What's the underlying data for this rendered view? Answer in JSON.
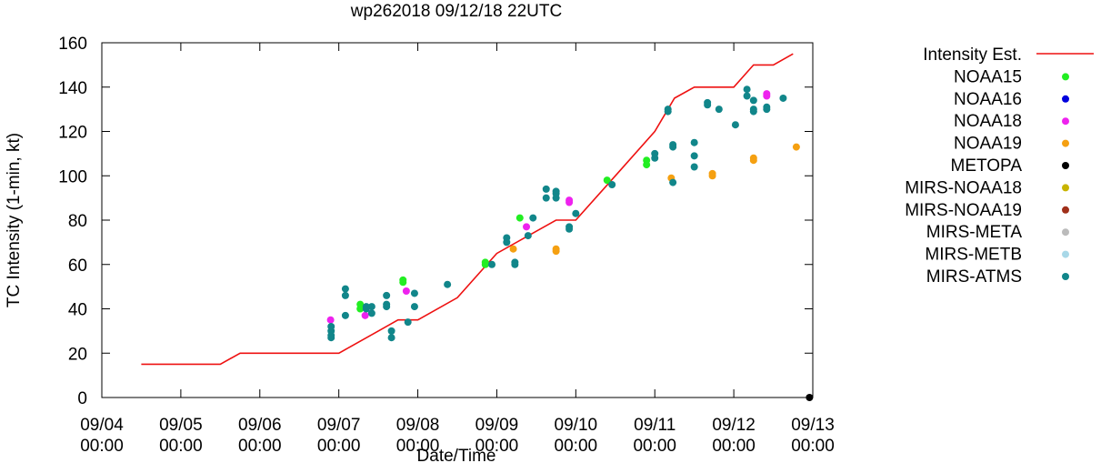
{
  "chart_data": {
    "type": "scatter",
    "title": "wp262018 09/12/18 22UTC",
    "xlabel": "Date/Time",
    "ylabel": "TC Intensity (1-min, kt)",
    "ylim": [
      0,
      160
    ],
    "yticks": [
      0,
      20,
      40,
      60,
      80,
      100,
      120,
      140,
      160
    ],
    "xlim": [
      "2018-09-04 00:00",
      "2018-09-13 00:00"
    ],
    "xticks": [
      {
        "value": "2018-09-04 00:00",
        "line1": "09/04",
        "line2": "00:00"
      },
      {
        "value": "2018-09-05 00:00",
        "line1": "09/05",
        "line2": "00:00"
      },
      {
        "value": "2018-09-06 00:00",
        "line1": "09/06",
        "line2": "00:00"
      },
      {
        "value": "2018-09-07 00:00",
        "line1": "09/07",
        "line2": "00:00"
      },
      {
        "value": "2018-09-08 00:00",
        "line1": "09/08",
        "line2": "00:00"
      },
      {
        "value": "2018-09-09 00:00",
        "line1": "09/09",
        "line2": "00:00"
      },
      {
        "value": "2018-09-10 00:00",
        "line1": "09/10",
        "line2": "00:00"
      },
      {
        "value": "2018-09-11 00:00",
        "line1": "09/11",
        "line2": "00:00"
      },
      {
        "value": "2018-09-12 00:00",
        "line1": "09/12",
        "line2": "00:00"
      },
      {
        "value": "2018-09-13 00:00",
        "line1": "09/13",
        "line2": "00:00"
      }
    ],
    "grid": false,
    "legend_position": "right",
    "legend": [
      {
        "name": "Intensity Est.",
        "marker": "line",
        "color": "#ee1111"
      },
      {
        "name": "NOAA15",
        "marker": "point",
        "color": "#22ee22"
      },
      {
        "name": "NOAA16",
        "marker": "point",
        "color": "#0000dd"
      },
      {
        "name": "NOAA18",
        "marker": "point",
        "color": "#ee22ee"
      },
      {
        "name": "NOAA19",
        "marker": "point",
        "color": "#f5a011"
      },
      {
        "name": "METOPA",
        "marker": "point",
        "color": "#000000"
      },
      {
        "name": "MIRS-NOAA18",
        "marker": "point",
        "color": "#c8b400"
      },
      {
        "name": "MIRS-NOAA19",
        "marker": "point",
        "color": "#a0301a"
      },
      {
        "name": "MIRS-META",
        "marker": "point",
        "color": "#bbbbbb"
      },
      {
        "name": "MIRS-METB",
        "marker": "point",
        "color": "#a8d8e8"
      },
      {
        "name": "MIRS-ATMS",
        "marker": "point",
        "color": "#11868a"
      }
    ],
    "series": [
      {
        "name": "Intensity Est.",
        "kind": "line",
        "color": "#ee1111",
        "points": [
          [
            "2018-09-04 12:00",
            15
          ],
          [
            "2018-09-05 12:00",
            15
          ],
          [
            "2018-09-05 18:00",
            20
          ],
          [
            "2018-09-07 00:00",
            20
          ],
          [
            "2018-09-07 12:00",
            30
          ],
          [
            "2018-09-07 18:00",
            35
          ],
          [
            "2018-09-08 00:00",
            35
          ],
          [
            "2018-09-08 12:00",
            45
          ],
          [
            "2018-09-09 00:00",
            65
          ],
          [
            "2018-09-09 12:00",
            75
          ],
          [
            "2018-09-09 18:00",
            80
          ],
          [
            "2018-09-10 00:00",
            80
          ],
          [
            "2018-09-10 12:00",
            100
          ],
          [
            "2018-09-11 00:00",
            120
          ],
          [
            "2018-09-11 06:00",
            135
          ],
          [
            "2018-09-11 12:00",
            140
          ],
          [
            "2018-09-12 00:00",
            140
          ],
          [
            "2018-09-12 06:00",
            150
          ],
          [
            "2018-09-12 12:00",
            150
          ],
          [
            "2018-09-12 18:00",
            155
          ]
        ]
      },
      {
        "name": "NOAA15",
        "kind": "scatter",
        "color": "#22ee22",
        "points": [
          [
            "2018-09-07 06:30",
            42
          ],
          [
            "2018-09-07 06:30",
            40
          ],
          [
            "2018-09-07 19:30",
            53
          ],
          [
            "2018-09-07 19:30",
            52
          ],
          [
            "2018-09-08 20:30",
            61
          ],
          [
            "2018-09-08 20:30",
            60
          ],
          [
            "2018-09-09 07:00",
            81
          ],
          [
            "2018-09-10 09:30",
            98
          ],
          [
            "2018-09-10 21:30",
            107
          ],
          [
            "2018-09-10 21:30",
            105
          ]
        ]
      },
      {
        "name": "NOAA16",
        "kind": "scatter",
        "color": "#0000dd",
        "points": []
      },
      {
        "name": "NOAA18",
        "kind": "scatter",
        "color": "#ee22ee",
        "points": [
          [
            "2018-09-06 21:30",
            35
          ],
          [
            "2018-09-07 08:00",
            37
          ],
          [
            "2018-09-07 20:30",
            48
          ],
          [
            "2018-09-09 09:00",
            77
          ],
          [
            "2018-09-09 22:00",
            89
          ],
          [
            "2018-09-09 22:00",
            88
          ],
          [
            "2018-09-12 10:00",
            137
          ],
          [
            "2018-09-12 10:00",
            136
          ]
        ]
      },
      {
        "name": "NOAA19",
        "kind": "scatter",
        "color": "#f5a011",
        "points": [
          [
            "2018-09-09 05:00",
            67
          ],
          [
            "2018-09-09 18:00",
            67
          ],
          [
            "2018-09-09 18:00",
            66
          ],
          [
            "2018-09-11 05:00",
            99
          ],
          [
            "2018-09-11 17:30",
            101
          ],
          [
            "2018-09-11 17:30",
            100
          ],
          [
            "2018-09-12 06:00",
            108
          ],
          [
            "2018-09-12 06:00",
            107
          ],
          [
            "2018-09-12 19:00",
            113
          ]
        ]
      },
      {
        "name": "METOPA",
        "kind": "scatter",
        "color": "#000000",
        "points": [
          [
            "2018-09-12 23:00",
            0
          ]
        ]
      },
      {
        "name": "MIRS-NOAA18",
        "kind": "scatter",
        "color": "#c8b400",
        "points": []
      },
      {
        "name": "MIRS-NOAA19",
        "kind": "scatter",
        "color": "#a0301a",
        "points": []
      },
      {
        "name": "MIRS-META",
        "kind": "scatter",
        "color": "#bbbbbb",
        "points": []
      },
      {
        "name": "MIRS-METB",
        "kind": "scatter",
        "color": "#a8d8e8",
        "points": []
      },
      {
        "name": "MIRS-ATMS",
        "kind": "scatter",
        "color": "#11868a",
        "points": [
          [
            "2018-09-06 21:40",
            32
          ],
          [
            "2018-09-06 21:40",
            30
          ],
          [
            "2018-09-06 21:40",
            28
          ],
          [
            "2018-09-06 21:40",
            27
          ],
          [
            "2018-09-07 02:00",
            49
          ],
          [
            "2018-09-07 02:00",
            46
          ],
          [
            "2018-09-07 02:00",
            37
          ],
          [
            "2018-09-07 08:20",
            41
          ],
          [
            "2018-09-07 08:20",
            40
          ],
          [
            "2018-09-07 10:00",
            41
          ],
          [
            "2018-09-07 10:00",
            38
          ],
          [
            "2018-09-07 14:30",
            46
          ],
          [
            "2018-09-07 14:30",
            42
          ],
          [
            "2018-09-07 14:30",
            41
          ],
          [
            "2018-09-07 16:00",
            30
          ],
          [
            "2018-09-07 16:00",
            27
          ],
          [
            "2018-09-07 21:00",
            34
          ],
          [
            "2018-09-07 23:00",
            47
          ],
          [
            "2018-09-07 23:00",
            41
          ],
          [
            "2018-09-08 09:00",
            51
          ],
          [
            "2018-09-08 22:30",
            60
          ],
          [
            "2018-09-09 03:00",
            72
          ],
          [
            "2018-09-09 03:00",
            70
          ],
          [
            "2018-09-09 05:30",
            61
          ],
          [
            "2018-09-09 05:30",
            60
          ],
          [
            "2018-09-09 09:30",
            73
          ],
          [
            "2018-09-09 11:00",
            81
          ],
          [
            "2018-09-09 15:00",
            94
          ],
          [
            "2018-09-09 15:00",
            90
          ],
          [
            "2018-09-09 18:00",
            93
          ],
          [
            "2018-09-09 18:00",
            92
          ],
          [
            "2018-09-09 18:00",
            90
          ],
          [
            "2018-09-09 22:00",
            77
          ],
          [
            "2018-09-09 22:00",
            76
          ],
          [
            "2018-09-10 00:00",
            83
          ],
          [
            "2018-09-10 11:00",
            96
          ],
          [
            "2018-09-11 00:00",
            110
          ],
          [
            "2018-09-11 00:00",
            108
          ],
          [
            "2018-09-11 04:00",
            130
          ],
          [
            "2018-09-11 04:00",
            129
          ],
          [
            "2018-09-11 05:30",
            114
          ],
          [
            "2018-09-11 05:30",
            113
          ],
          [
            "2018-09-11 05:30",
            97
          ],
          [
            "2018-09-11 12:00",
            115
          ],
          [
            "2018-09-11 12:00",
            109
          ],
          [
            "2018-09-11 12:00",
            104
          ],
          [
            "2018-09-11 16:00",
            133
          ],
          [
            "2018-09-11 16:00",
            132
          ],
          [
            "2018-09-11 19:30",
            130
          ],
          [
            "2018-09-12 00:30",
            123
          ],
          [
            "2018-09-12 04:00",
            139
          ],
          [
            "2018-09-12 04:00",
            136
          ],
          [
            "2018-09-12 06:00",
            134
          ],
          [
            "2018-09-12 06:00",
            130
          ],
          [
            "2018-09-12 06:00",
            129
          ],
          [
            "2018-09-12 10:00",
            131
          ],
          [
            "2018-09-12 10:00",
            130
          ],
          [
            "2018-09-12 15:00",
            135
          ]
        ]
      }
    ]
  }
}
